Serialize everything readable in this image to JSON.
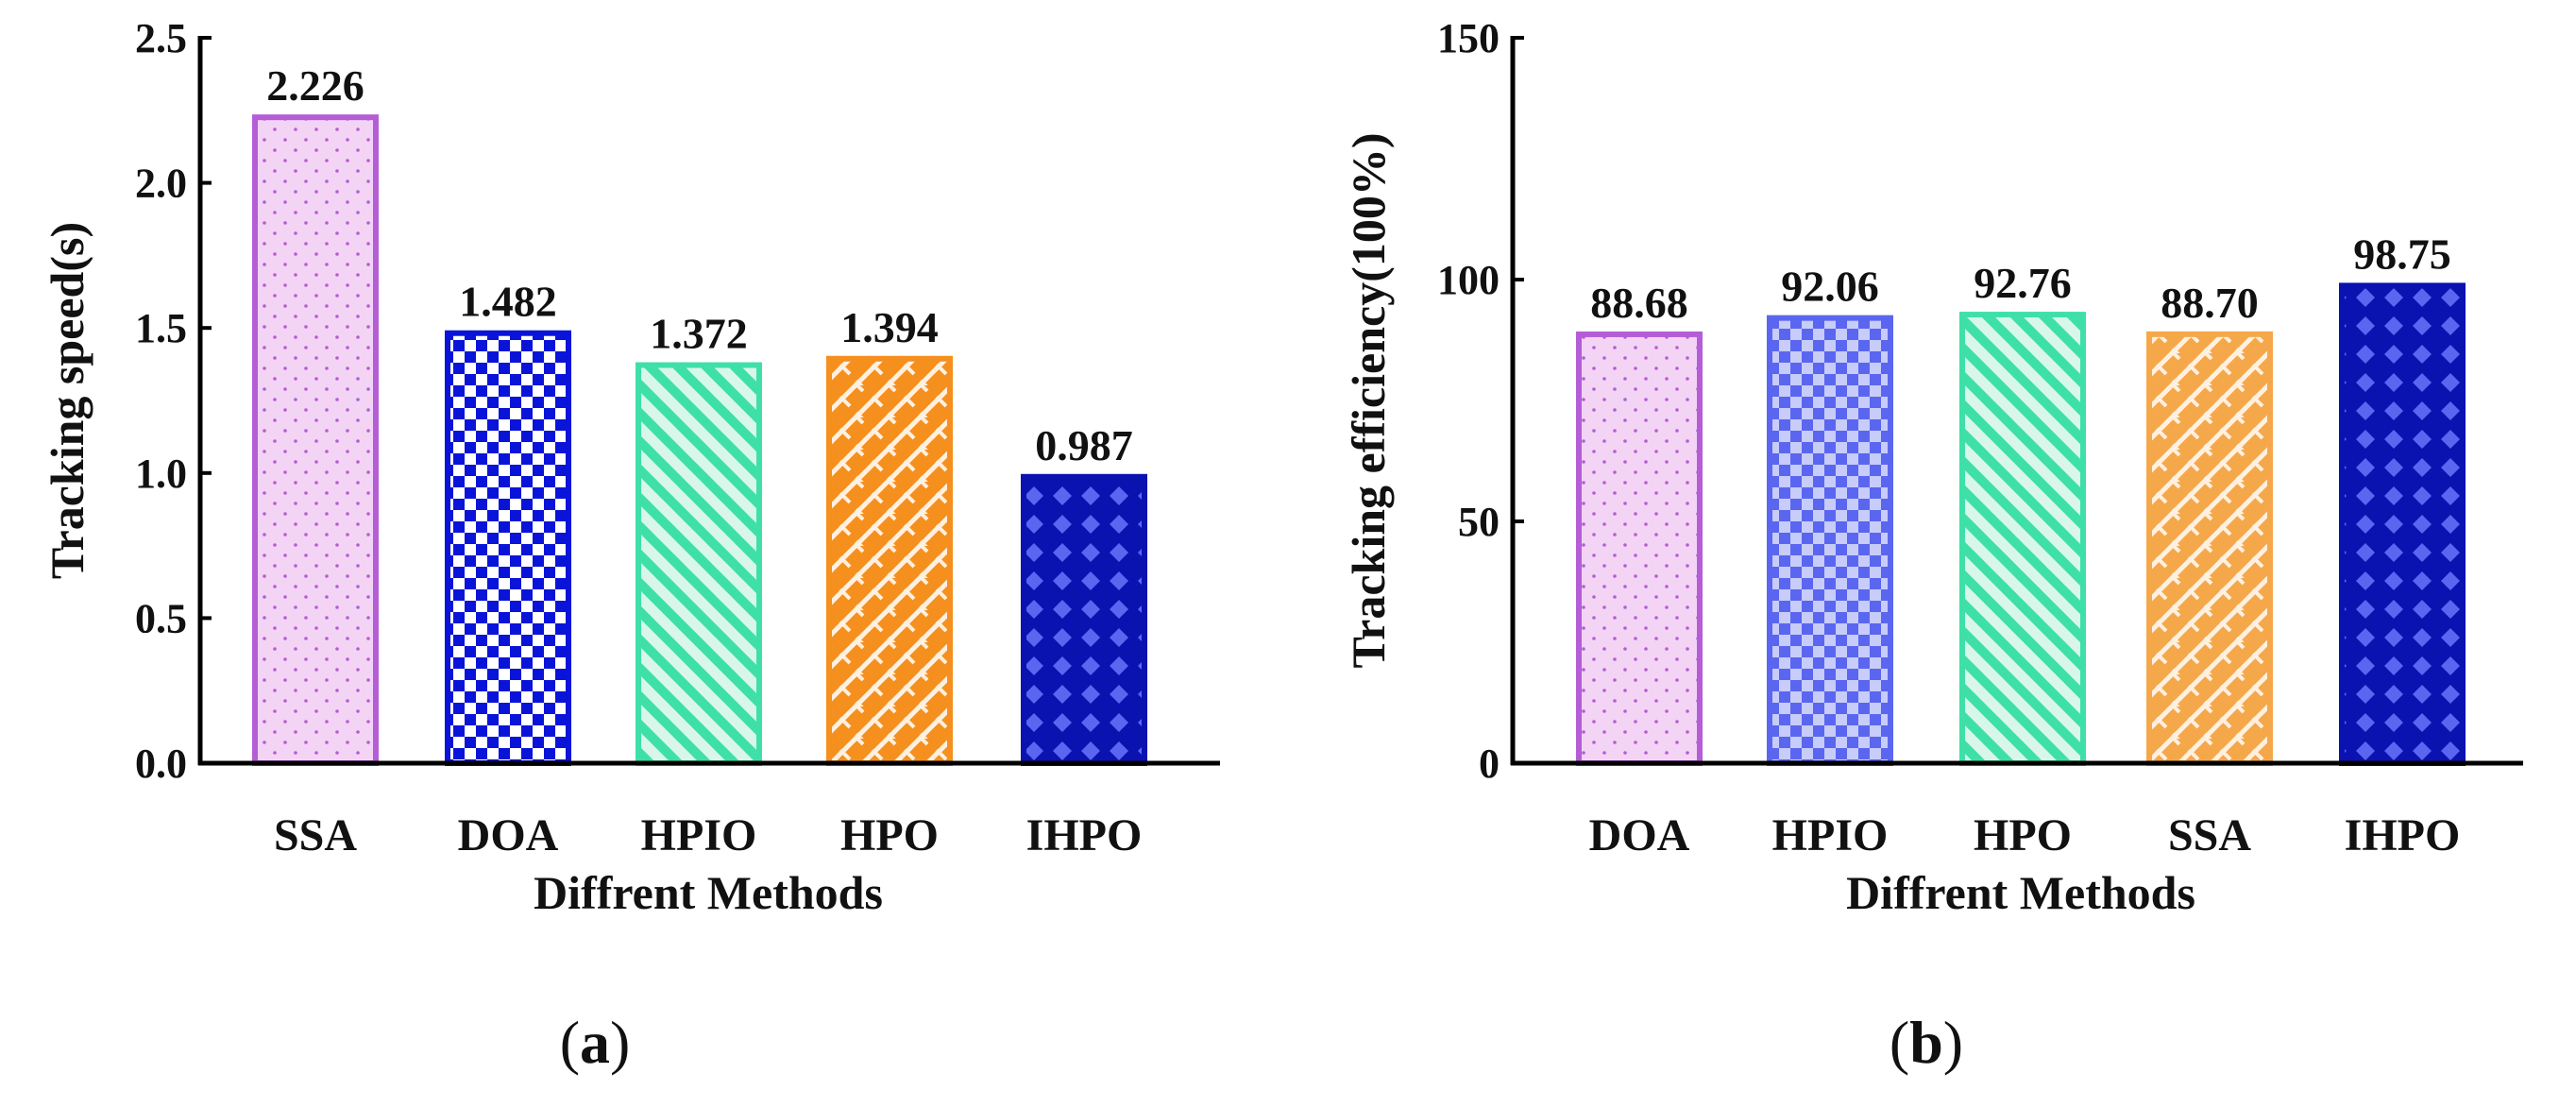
{
  "chart_data": [
    {
      "type": "bar",
      "panel_label": "a",
      "categories": [
        "SSA",
        "DOA",
        "HPIO",
        "HPO",
        "IHPO"
      ],
      "values": [
        2.226,
        1.482,
        1.372,
        1.394,
        0.987
      ],
      "value_labels": [
        "2.226",
        "1.482",
        "1.372",
        "1.394",
        "0.987"
      ],
      "xlabel": "Diffrent Methods",
      "ylabel": "Tracking speed(s)",
      "ylim": [
        0,
        2.5
      ],
      "yticks": [
        "0.0",
        "0.5",
        "1.0",
        "1.5",
        "2.0",
        "2.5"
      ],
      "bar_styles": [
        {
          "fill": "#f3d4f5",
          "edge": "#b45dd6",
          "pattern": "dots",
          "mark": "#b45dd6"
        },
        {
          "fill": "#ffffff",
          "edge": "#0a14d8",
          "pattern": "checker",
          "mark": "#0a14d8"
        },
        {
          "fill": "#d8f7ea",
          "edge": "#3ee0a8",
          "pattern": "diagonal",
          "mark": "#3ee0a8"
        },
        {
          "fill": "#fff0e0",
          "edge": "#f5901e",
          "pattern": "brick",
          "mark": "#f5901e"
        },
        {
          "fill": "#0a12b0",
          "edge": "#0a12b0",
          "pattern": "diamond",
          "mark": "#5a66f0"
        }
      ]
    },
    {
      "type": "bar",
      "panel_label": "b",
      "categories": [
        "DOA",
        "HPIO",
        "HPO",
        "SSA",
        "IHPO"
      ],
      "values": [
        88.68,
        92.06,
        92.76,
        88.7,
        98.75
      ],
      "value_labels": [
        "88.68",
        "92.06",
        "92.76",
        "88.70",
        "98.75"
      ],
      "xlabel": "Diffrent Methods",
      "ylabel": "Tracking efficiency(100%)",
      "ylim": [
        0,
        150
      ],
      "yticks": [
        "0",
        "50",
        "100",
        "150"
      ],
      "bar_styles": [
        {
          "fill": "#f3d4f5",
          "edge": "#b45dd6",
          "pattern": "dots",
          "mark": "#b45dd6"
        },
        {
          "fill": "#c8ccf8",
          "edge": "#5a66f0",
          "pattern": "checker",
          "mark": "#5a66f0"
        },
        {
          "fill": "#d8f7ea",
          "edge": "#3ee0a8",
          "pattern": "diagonal",
          "mark": "#3ee0a8"
        },
        {
          "fill": "#fff0e0",
          "edge": "#f5a84a",
          "pattern": "brick",
          "mark": "#f5a84a"
        },
        {
          "fill": "#0a12b0",
          "edge": "#0a12b0",
          "pattern": "diamond",
          "mark": "#5a66f0"
        }
      ]
    }
  ]
}
